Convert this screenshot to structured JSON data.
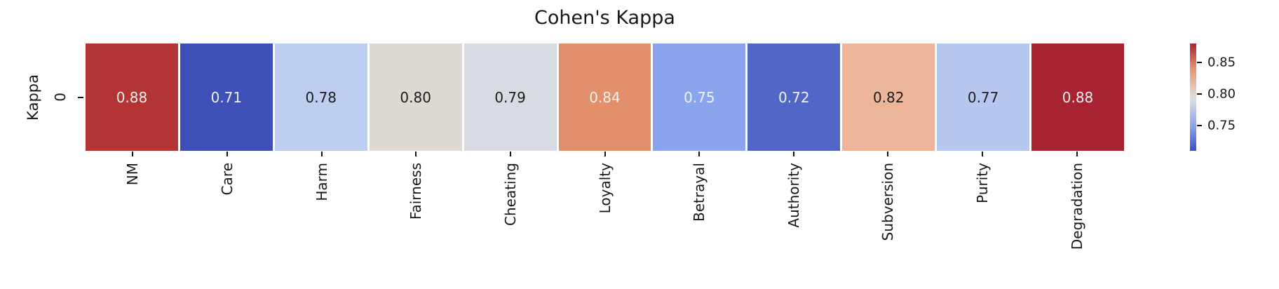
{
  "chart_data": {
    "type": "heatmap",
    "title": "Cohen's Kappa",
    "row_label": "Kappa",
    "row_tick": "0",
    "categories": [
      "NM",
      "Care",
      "Harm",
      "Fairness",
      "Cheating",
      "Loyalty",
      "Betrayal",
      "Authority",
      "Subversion",
      "Purity",
      "Degradation"
    ],
    "values": [
      0.88,
      0.71,
      0.78,
      0.8,
      0.79,
      0.84,
      0.75,
      0.72,
      0.82,
      0.77,
      0.88
    ],
    "cells": [
      {
        "category": "NM",
        "value_text": "0.88",
        "color": "#b23434",
        "text_color": "#f2f2f2"
      },
      {
        "category": "Care",
        "value_text": "0.71",
        "color": "#3e50b8",
        "text_color": "#f2f2f2"
      },
      {
        "category": "Harm",
        "value_text": "0.78",
        "color": "#bdcef1",
        "text_color": "#1c1c1c"
      },
      {
        "category": "Fairness",
        "value_text": "0.80",
        "color": "#ded9d2",
        "text_color": "#1c1c1c"
      },
      {
        "category": "Cheating",
        "value_text": "0.79",
        "color": "#d9dbe3",
        "text_color": "#1c1c1c"
      },
      {
        "category": "Loyalty",
        "value_text": "0.84",
        "color": "#e28f6c",
        "text_color": "#f2f2f2"
      },
      {
        "category": "Betrayal",
        "value_text": "0.75",
        "color": "#8ba4ee",
        "text_color": "#f2f2f2"
      },
      {
        "category": "Authority",
        "value_text": "0.72",
        "color": "#5266c8",
        "text_color": "#f2f2f2"
      },
      {
        "category": "Subversion",
        "value_text": "0.82",
        "color": "#edb69b",
        "text_color": "#1c1c1c"
      },
      {
        "category": "Purity",
        "value_text": "0.77",
        "color": "#b7c8f0",
        "text_color": "#1c1c1c"
      },
      {
        "category": "Degradation",
        "value_text": "0.88",
        "color": "#a82332",
        "text_color": "#f2f2f2"
      }
    ],
    "colorbar": {
      "vmin": 0.71,
      "vmax": 0.88,
      "tick_labels": [
        "0.85",
        "0.80",
        "0.75"
      ],
      "gradient_stops": [
        {
          "v": 0.71,
          "color": "#3d50c3"
        },
        {
          "v": 0.75,
          "color": "#8ba4ee"
        },
        {
          "v": 0.79,
          "color": "#d9dce3"
        },
        {
          "v": 0.8,
          "color": "#ded9d2"
        },
        {
          "v": 0.84,
          "color": "#e8926f"
        },
        {
          "v": 0.88,
          "color": "#a82332"
        }
      ]
    },
    "legend_position": "right",
    "grid": false
  }
}
